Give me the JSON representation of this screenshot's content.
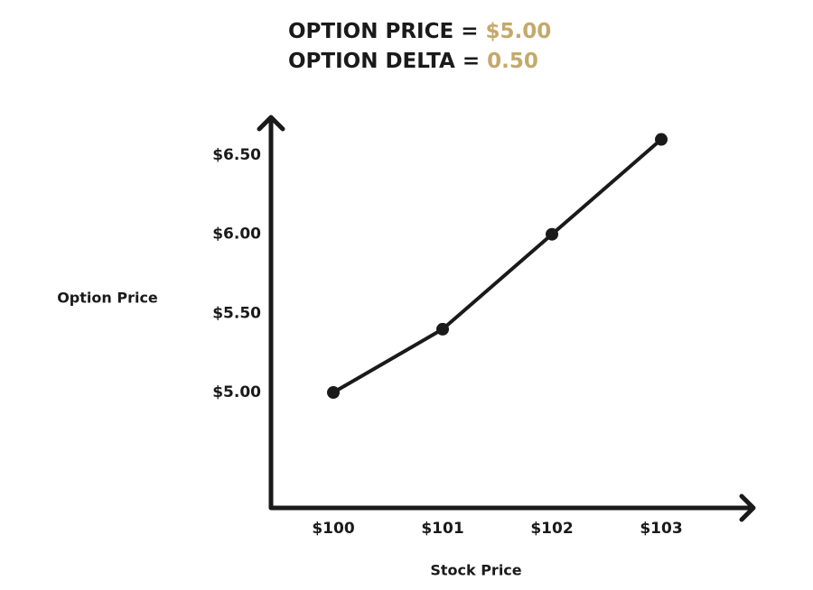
{
  "chart_data": {
    "type": "line",
    "title_lines": [
      {
        "label": "OPTION PRICE =",
        "value": "$5.00"
      },
      {
        "label": "OPTION DELTA =",
        "value": "0.50"
      }
    ],
    "highlight_color": "#c4a96b",
    "x_label": "Stock Price",
    "y_label": "Option Price",
    "categories": [
      "$100",
      "$101",
      "$102",
      "$103"
    ],
    "values": [
      5.0,
      5.4,
      6.0,
      6.6
    ],
    "color": "#1a1a1a",
    "ylim": [
      4.27,
      6.74
    ],
    "yticks": [
      {
        "value": 5,
        "label": "$5.00"
      },
      {
        "value": 5.5,
        "label": "$5.50"
      },
      {
        "value": 6,
        "label": "$6.00"
      },
      {
        "value": 6.5,
        "label": "$6.50"
      }
    ],
    "grid": false
  }
}
